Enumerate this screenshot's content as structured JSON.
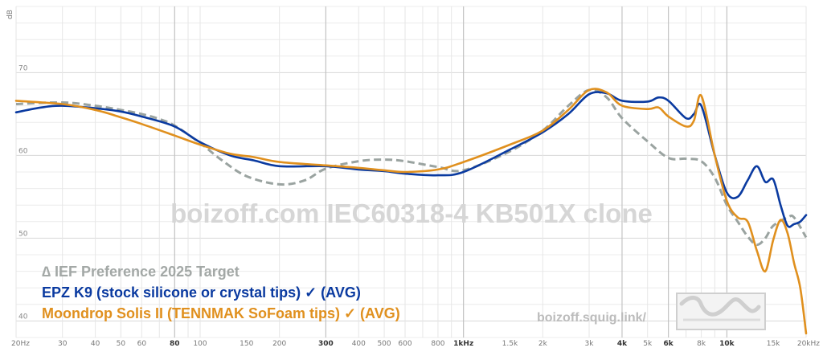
{
  "chart_data": {
    "type": "line",
    "title": "",
    "xlabel": "",
    "ylabel": "dB",
    "x_scale": "log",
    "xlim": [
      20,
      20000
    ],
    "ylim": [
      38,
      78
    ],
    "grid": true,
    "legend_placement": "bottom-left",
    "x_ticks": [
      {
        "v": 20,
        "label": "20Hz",
        "major": false
      },
      {
        "v": 30,
        "label": "30",
        "major": false
      },
      {
        "v": 40,
        "label": "40",
        "major": false
      },
      {
        "v": 50,
        "label": "50",
        "major": false
      },
      {
        "v": 60,
        "label": "60",
        "major": false
      },
      {
        "v": 80,
        "label": "80",
        "major": true
      },
      {
        "v": 100,
        "label": "100",
        "major": false
      },
      {
        "v": 150,
        "label": "150",
        "major": false
      },
      {
        "v": 200,
        "label": "200",
        "major": false
      },
      {
        "v": 300,
        "label": "300",
        "major": true
      },
      {
        "v": 400,
        "label": "400",
        "major": false
      },
      {
        "v": 500,
        "label": "500",
        "major": false
      },
      {
        "v": 600,
        "label": "600",
        "major": false
      },
      {
        "v": 800,
        "label": "800",
        "major": false
      },
      {
        "v": 1000,
        "label": "1kHz",
        "major": true
      },
      {
        "v": 1500,
        "label": "1.5k",
        "major": false
      },
      {
        "v": 2000,
        "label": "2k",
        "major": false
      },
      {
        "v": 3000,
        "label": "3k",
        "major": false
      },
      {
        "v": 4000,
        "label": "4k",
        "major": true
      },
      {
        "v": 5000,
        "label": "5k",
        "major": false
      },
      {
        "v": 6000,
        "label": "6k",
        "major": true
      },
      {
        "v": 8000,
        "label": "8k",
        "major": false
      },
      {
        "v": 10000,
        "label": "10k",
        "major": true
      },
      {
        "v": 15000,
        "label": "15k",
        "major": false
      },
      {
        "v": 20000,
        "label": "20kHz",
        "major": false
      }
    ],
    "y_ticks": [
      {
        "v": 40,
        "label": "40"
      },
      {
        "v": 50,
        "label": "50"
      },
      {
        "v": 60,
        "label": "60"
      },
      {
        "v": 70,
        "label": "70"
      }
    ],
    "series": [
      {
        "name": "IEF Preference 2025 Target",
        "legend_label": "∆ IEF Preference 2025 Target",
        "color": "#9aa3a0",
        "style": "dashed",
        "x": [
          20,
          30,
          40,
          50,
          60,
          70,
          80,
          100,
          120,
          150,
          200,
          250,
          300,
          400,
          500,
          600,
          800,
          1000,
          1500,
          2000,
          2500,
          3000,
          3500,
          4000,
          5000,
          6000,
          7000,
          8000,
          9000,
          10000,
          11000,
          12000,
          13000,
          14000,
          15000,
          17000,
          18000,
          20000
        ],
        "y": [
          66.2,
          66.4,
          66.0,
          65.5,
          65.0,
          64.4,
          63.6,
          61.5,
          59.5,
          57.5,
          56.5,
          57.0,
          58.4,
          59.3,
          59.5,
          59.3,
          58.6,
          58.2,
          60.5,
          63.0,
          66.0,
          67.9,
          67.0,
          64.5,
          61.7,
          59.7,
          59.6,
          59.3,
          57.3,
          54.0,
          52.0,
          50.2,
          49.2,
          50.0,
          51.5,
          52.5,
          52.5,
          50.1
        ]
      },
      {
        "name": "EPZ K9 (stock silicone or crystal tips) ✓ (AVG)",
        "legend_label": "EPZ K9 (stock silicone or crystal tips) ✓ (AVG)",
        "color": "#0a3aa0",
        "style": "solid",
        "x": [
          20,
          25,
          30,
          40,
          50,
          60,
          80,
          100,
          130,
          160,
          200,
          300,
          400,
          500,
          600,
          800,
          1000,
          1500,
          2000,
          2500,
          3000,
          3500,
          4000,
          5000,
          5500,
          6000,
          7000,
          7500,
          8000,
          9000,
          10000,
          11000,
          12000,
          13000,
          14000,
          15000,
          16000,
          17000,
          18000,
          19000,
          20000
        ],
        "y": [
          65.2,
          65.8,
          66.0,
          65.7,
          65.3,
          64.7,
          63.5,
          61.6,
          60.0,
          59.4,
          58.7,
          58.7,
          58.3,
          58.1,
          57.8,
          57.6,
          58.0,
          60.7,
          62.8,
          65.0,
          67.4,
          67.5,
          66.6,
          66.5,
          67.0,
          66.6,
          64.5,
          65.0,
          66.0,
          60.0,
          55.5,
          55.0,
          57.0,
          58.7,
          56.8,
          57.1,
          54.0,
          51.5,
          51.7,
          52.0,
          52.8
        ]
      },
      {
        "name": "Moondrop Solis II (TENNMAK SoFoam tips) ✓ (AVG)",
        "legend_label": "Moondrop Solis II (TENNMAK SoFoam tips) ✓ (AVG)",
        "color": "#e0901e",
        "style": "solid",
        "x": [
          20,
          30,
          40,
          50,
          60,
          80,
          100,
          130,
          160,
          200,
          300,
          400,
          500,
          600,
          800,
          1000,
          1500,
          2000,
          2500,
          3000,
          3500,
          4000,
          5000,
          5500,
          6000,
          7000,
          7500,
          8000,
          9000,
          10000,
          11000,
          12000,
          13000,
          14000,
          15000,
          16000,
          17000,
          18000,
          19000,
          20000
        ],
        "y": [
          66.6,
          66.2,
          65.5,
          64.6,
          63.8,
          62.4,
          61.3,
          60.2,
          59.8,
          59.2,
          58.8,
          58.5,
          58.2,
          58.0,
          58.3,
          59.2,
          61.3,
          63.0,
          65.5,
          67.9,
          67.6,
          66.0,
          65.6,
          65.8,
          64.7,
          63.5,
          64.2,
          67.2,
          60.0,
          54.5,
          52.5,
          52.0,
          48.5,
          46.0,
          49.8,
          52.2,
          50.6,
          47.0,
          44.0,
          38.5
        ]
      }
    ],
    "watermark": "boizoff.com IEC60318-4 KB501X clone",
    "url_label": "boizoff.squig.link/"
  }
}
